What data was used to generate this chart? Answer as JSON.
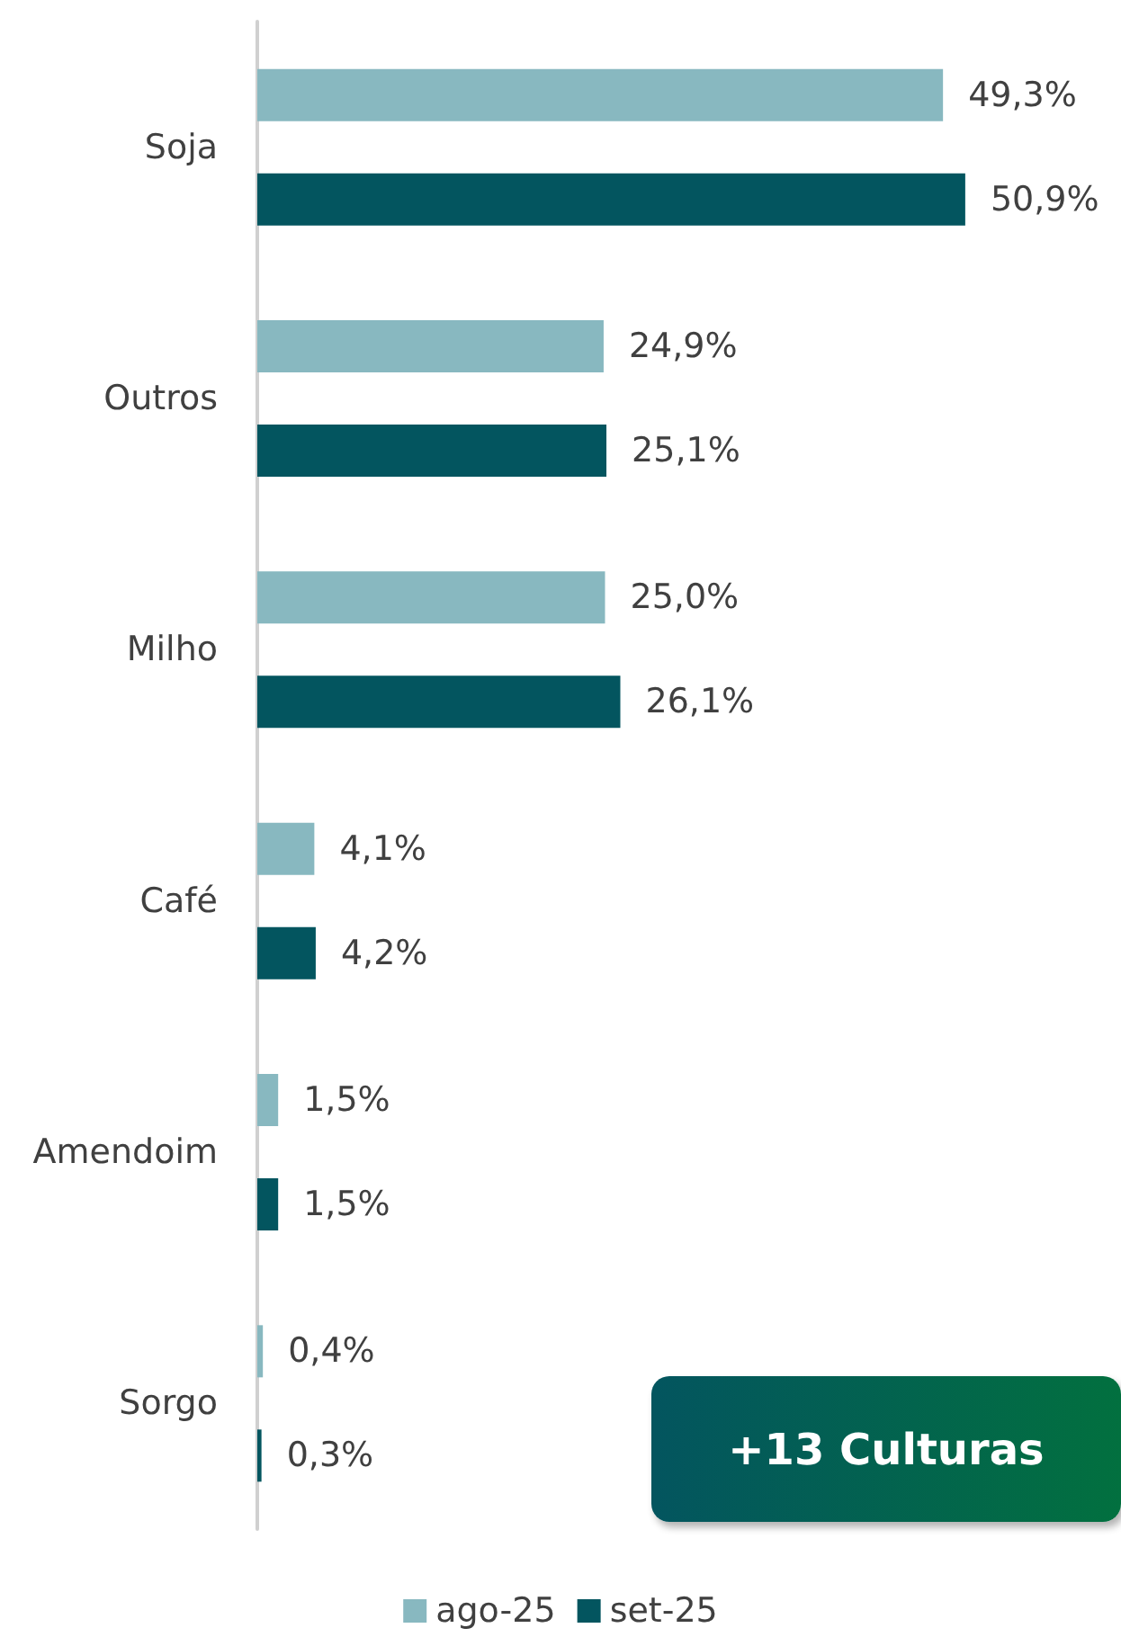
{
  "chart_data": {
    "type": "bar",
    "orientation": "horizontal",
    "categories": [
      "Soja",
      "Outros",
      "Milho",
      "Café",
      "Amendoim",
      "Sorgo"
    ],
    "series": [
      {
        "name": "ago-25",
        "color": "#88b8c0",
        "values": [
          49.3,
          24.9,
          25.0,
          4.1,
          1.5,
          0.4
        ],
        "value_labels": [
          "49,3%",
          "24,9%",
          "25,0%",
          "4,1%",
          "1,5%",
          "0,4%"
        ]
      },
      {
        "name": "set-25",
        "color": "#03555f",
        "values": [
          50.9,
          25.1,
          26.1,
          4.2,
          1.5,
          0.3
        ],
        "value_labels": [
          "50,9%",
          "25,1%",
          "26,1%",
          "4,2%",
          "1,5%",
          "0,3%"
        ]
      }
    ],
    "legend": "bottom",
    "grid": false,
    "annotations": [
      "+13 Culturas"
    ]
  }
}
